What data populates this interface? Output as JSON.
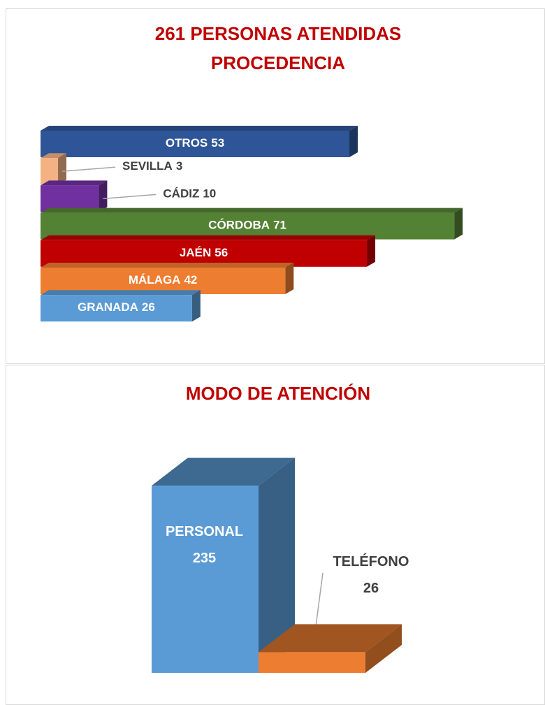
{
  "chart_data": [
    {
      "type": "hbar3d",
      "title": [
        "261 PERSONAS ATENDIDAS",
        "PROCEDENCIA"
      ],
      "categories": [
        "OTROS",
        "SEVILLA",
        "CÁDIZ",
        "CÓRDOBA",
        "JAÉN",
        "MÁLAGA",
        "GRANADA"
      ],
      "values": [
        53,
        3,
        10,
        71,
        56,
        42,
        26
      ],
      "colors": [
        "#2e5597",
        "#f4b183",
        "#7030a0",
        "#548235",
        "#c00000",
        "#ed7d31",
        "#5b9bd5"
      ]
    },
    {
      "type": "column3d",
      "title": "MODO DE ATENCIÓN",
      "categories": [
        "PERSONAL",
        "TELÉFONO"
      ],
      "values": [
        235,
        26
      ],
      "colors": [
        "#5b9bd5",
        "#ed7d31"
      ]
    }
  ]
}
